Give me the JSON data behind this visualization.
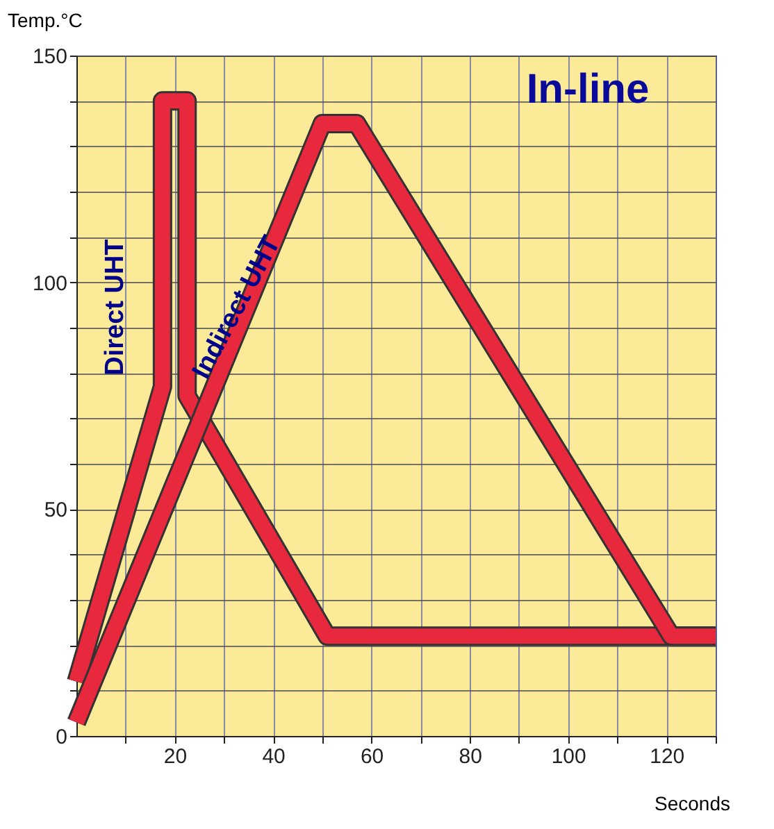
{
  "chart_data": {
    "type": "line",
    "xlabel": "Seconds",
    "ylabel": "Temp.°C",
    "annotations": [
      "In-line"
    ],
    "series": [
      {
        "name": "Direct UHT",
        "color": "#e8283c",
        "x": [
          0,
          17.5,
          17.5,
          22.5,
          22.5,
          51,
          130
        ],
        "values": [
          12,
          77,
          140,
          140,
          75,
          22,
          22
        ]
      },
      {
        "name": "Indirect UHT",
        "color": "#e8283c",
        "x": [
          0,
          50,
          57,
          121,
          130
        ],
        "values": [
          3,
          135,
          135,
          22,
          22
        ]
      }
    ],
    "xlim": [
      0,
      130
    ],
    "ylim": [
      0,
      150
    ],
    "xticks": [
      {
        "value": 10,
        "label": null
      },
      20,
      {
        "value": 30,
        "label": null
      },
      40,
      {
        "value": 50,
        "label": null
      },
      60,
      {
        "value": 70,
        "label": null
      },
      80,
      {
        "value": 90,
        "label": null
      },
      100,
      {
        "value": 110,
        "label": null
      },
      120,
      {
        "value": 130,
        "label": null
      }
    ],
    "yticks": [
      0,
      {
        "value": 10,
        "label": null
      },
      {
        "value": 20,
        "label": null
      },
      {
        "value": 30,
        "label": null
      },
      {
        "value": 40,
        "label": null
      },
      50,
      {
        "value": 60,
        "label": null
      },
      {
        "value": 70,
        "label": null
      },
      {
        "value": 80,
        "label": null
      },
      {
        "value": 90,
        "label": null
      },
      100,
      {
        "value": 110,
        "label": null
      },
      {
        "value": 120,
        "label": null
      },
      {
        "value": 130,
        "label": null
      },
      {
        "value": 140,
        "label": null
      },
      150
    ],
    "grid": true,
    "line_style": "solid",
    "marker": "none"
  }
}
